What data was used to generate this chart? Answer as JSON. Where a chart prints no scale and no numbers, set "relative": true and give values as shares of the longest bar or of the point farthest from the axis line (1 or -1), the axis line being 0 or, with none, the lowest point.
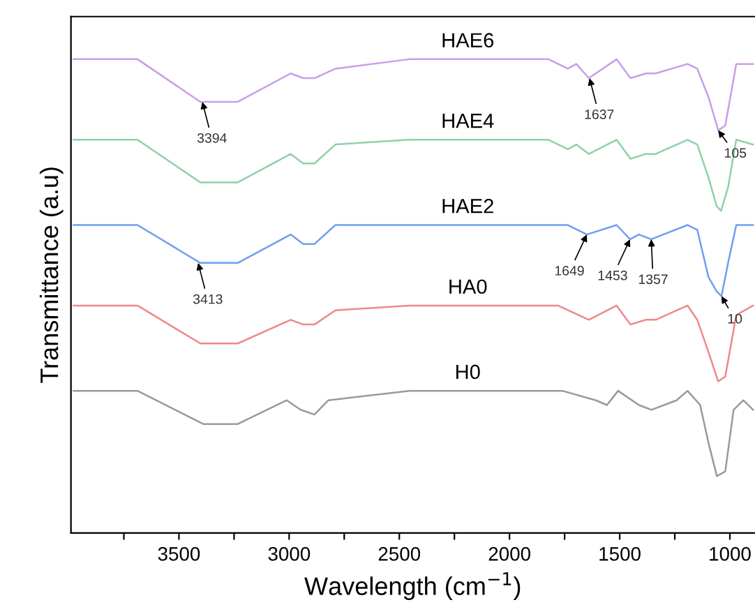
{
  "chart_data": {
    "type": "line",
    "relative": true,
    "xlabel": "Wavelength (cm$^{−1}$)",
    "ylabel": "Transmittance (a.u)",
    "xlim": [
      3990,
      886
    ],
    "xticks": [
      {
        "value": 3750,
        "label": null
      },
      3500,
      {
        "value": 3250,
        "label": null
      },
      3000,
      {
        "value": 2750,
        "label": null
      },
      2500,
      {
        "value": 2250,
        "label": null
      },
      2000,
      {
        "value": 1750,
        "label": null
      },
      1500,
      {
        "value": 1250,
        "label": null
      },
      1000
    ],
    "grid": false,
    "legend": false,
    "marker": "none",
    "line_style": "solid",
    "series": [
      {
        "name": "HAE6",
        "color": "#c89ee8",
        "x": [
          3978,
          3688,
          3403,
          3233,
          2993,
          2936,
          2885,
          2790,
          2455,
          1823,
          1735,
          1697,
          1640,
          1514,
          1451,
          1381,
          1337,
          1192,
          1148,
          1097,
          1053,
          1021,
          971,
          895
        ],
        "values": [
          1.0,
          1.0,
          0.91,
          0.91,
          0.97,
          0.96,
          0.96,
          0.98,
          1.0,
          1.0,
          0.98,
          0.99,
          0.96,
          1.0,
          0.96,
          0.97,
          0.97,
          0.99,
          0.98,
          0.92,
          0.85,
          0.86,
          0.99,
          0.99
        ]
      },
      {
        "name": "HAE4",
        "color": "#8fd1a8",
        "x": [
          3978,
          3738,
          3688,
          3403,
          3233,
          2993,
          2936,
          2885,
          2790,
          2455,
          1823,
          1735,
          1697,
          1640,
          1514,
          1451,
          1381,
          1337,
          1192,
          1148,
          1097,
          1060,
          1040,
          1008,
          971,
          895
        ],
        "values": [
          0.83,
          0.83,
          0.83,
          0.74,
          0.74,
          0.8,
          0.78,
          0.78,
          0.82,
          0.83,
          0.83,
          0.81,
          0.82,
          0.8,
          0.83,
          0.79,
          0.8,
          0.8,
          0.83,
          0.82,
          0.75,
          0.69,
          0.68,
          0.73,
          0.83,
          0.82
        ]
      },
      {
        "name": "HAE2",
        "color": "#6f9ef0",
        "x": [
          3978,
          3688,
          3403,
          3233,
          2993,
          2936,
          2885,
          2790,
          2455,
          1823,
          1735,
          1649,
          1514,
          1453,
          1413,
          1357,
          1192,
          1148,
          1097,
          1060,
          1038,
          1008,
          971,
          895
        ],
        "values": [
          0.65,
          0.65,
          0.57,
          0.57,
          0.63,
          0.61,
          0.61,
          0.65,
          0.65,
          0.65,
          0.65,
          0.63,
          0.65,
          0.62,
          0.63,
          0.62,
          0.65,
          0.64,
          0.54,
          0.51,
          0.5,
          0.57,
          0.65,
          0.65
        ]
      },
      {
        "name": "HA0",
        "color": "#f08888",
        "x": [
          3978,
          3688,
          3403,
          3233,
          2993,
          2936,
          2885,
          2790,
          2455,
          1780,
          1640,
          1514,
          1451,
          1381,
          1337,
          1192,
          1148,
          1103,
          1053,
          1021,
          971,
          895
        ],
        "values": [
          0.48,
          0.48,
          0.4,
          0.4,
          0.45,
          0.44,
          0.44,
          0.47,
          0.48,
          0.48,
          0.45,
          0.48,
          0.44,
          0.45,
          0.45,
          0.48,
          0.45,
          0.39,
          0.32,
          0.33,
          0.46,
          0.48
        ]
      },
      {
        "name": "H0",
        "color": "#999999",
        "x": [
          3978,
          3688,
          3390,
          3233,
          3011,
          2948,
          2885,
          2822,
          2455,
          1760,
          1608,
          1558,
          1507,
          1413,
          1356,
          1242,
          1192,
          1135,
          1097,
          1059,
          1021,
          983,
          939,
          895
        ],
        "values": [
          0.3,
          0.3,
          0.23,
          0.23,
          0.28,
          0.26,
          0.25,
          0.28,
          0.3,
          0.3,
          0.28,
          0.27,
          0.3,
          0.27,
          0.26,
          0.28,
          0.3,
          0.27,
          0.19,
          0.12,
          0.13,
          0.26,
          0.28,
          0.26
        ]
      }
    ],
    "annotations": [
      {
        "text": "3394",
        "x": 3394,
        "y": 0.91
      },
      {
        "text": "1637",
        "x": 1637,
        "y": 0.96
      },
      {
        "text": "105",
        "x": 1053,
        "y": 0.85
      },
      {
        "text": "3413",
        "x": 3413,
        "y": 0.57
      },
      {
        "text": "1649",
        "x": 1649,
        "y": 0.63
      },
      {
        "text": "1453",
        "x": 1453,
        "y": 0.62
      },
      {
        "text": "1357",
        "x": 1357,
        "y": 0.62
      },
      {
        "text": "10",
        "x": 1038,
        "y": 0.5
      }
    ]
  }
}
